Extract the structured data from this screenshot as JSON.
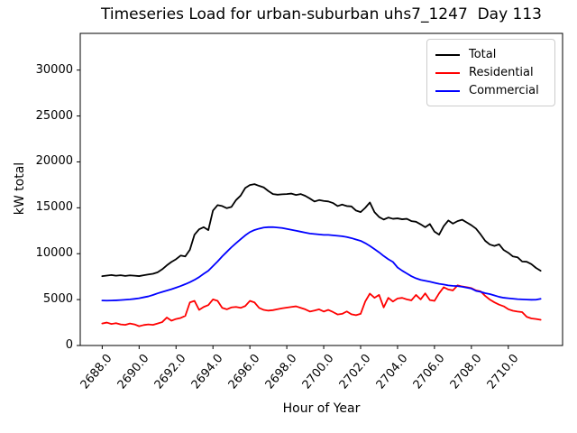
{
  "figure": {
    "title": "Timeseries Load for urban-suburban uhs7_1247  Day 113"
  },
  "chart_data": {
    "type": "line",
    "title": "Timeseries Load for urban-suburban uhs7_1247  Day 113",
    "xlabel": "Hour of Year",
    "ylabel": "kW total",
    "grid": false,
    "legend_position": "upper right",
    "xlim": [
      2686.81,
      2712.94
    ],
    "ylim": [
      0,
      34000
    ],
    "x_start": 2688.0,
    "x_step": 0.25,
    "x_end": 2711.75,
    "xticks": [
      2688,
      2690,
      2692,
      2694,
      2696,
      2698,
      2700,
      2702,
      2704,
      2706,
      2708,
      2710
    ],
    "xtick_labels": [
      "2688.0",
      "2690.0",
      "2692.0",
      "2694.0",
      "2696.0",
      "2698.0",
      "2700.0",
      "2702.0",
      "2704.0",
      "2706.0",
      "2708.0",
      "2710.0"
    ],
    "yticks": [
      0,
      5000,
      10000,
      15000,
      20000,
      25000,
      30000
    ],
    "ytick_labels": [
      "0",
      "5000",
      "10000",
      "15000",
      "20000",
      "25000",
      "30000"
    ],
    "series": [
      {
        "name": "Total",
        "color": "#000000",
        "values": [
          7550,
          7620,
          7680,
          7600,
          7650,
          7580,
          7640,
          7600,
          7560,
          7650,
          7740,
          7810,
          7970,
          8300,
          8730,
          9100,
          9400,
          9800,
          9700,
          10430,
          12070,
          12660,
          12890,
          12570,
          14700,
          15290,
          15190,
          14960,
          15100,
          15840,
          16330,
          17160,
          17480,
          17580,
          17390,
          17220,
          16830,
          16500,
          16430,
          16470,
          16500,
          16550,
          16400,
          16500,
          16300,
          16010,
          15690,
          15840,
          15750,
          15690,
          15520,
          15190,
          15350,
          15190,
          15150,
          14700,
          14530,
          15000,
          15580,
          14530,
          14000,
          13720,
          13940,
          13800,
          13850,
          13750,
          13800,
          13550,
          13480,
          13200,
          12890,
          13230,
          12400,
          12070,
          13000,
          13620,
          13280,
          13550,
          13700,
          13400,
          13100,
          12730,
          12100,
          11400,
          11000,
          10850,
          11020,
          10400,
          10100,
          9700,
          9610,
          9150,
          9120,
          8860,
          8450,
          8140
        ]
      },
      {
        "name": "Residential",
        "color": "#ff0000",
        "values": [
          2400,
          2500,
          2350,
          2430,
          2300,
          2250,
          2400,
          2300,
          2100,
          2230,
          2300,
          2250,
          2400,
          2550,
          3050,
          2700,
          2890,
          3000,
          3220,
          4690,
          4860,
          3880,
          4200,
          4400,
          5020,
          4860,
          4100,
          3940,
          4150,
          4200,
          4100,
          4300,
          4860,
          4690,
          4100,
          3880,
          3800,
          3850,
          3950,
          4050,
          4130,
          4200,
          4270,
          4100,
          3940,
          3700,
          3810,
          3940,
          3700,
          3880,
          3650,
          3380,
          3450,
          3710,
          3400,
          3300,
          3450,
          4800,
          5650,
          5200,
          5510,
          4150,
          5190,
          4790,
          5120,
          5190,
          5020,
          4920,
          5510,
          5020,
          5680,
          4950,
          4860,
          5680,
          6340,
          6100,
          6000,
          6550,
          6430,
          6350,
          6250,
          6000,
          5900,
          5400,
          5000,
          4700,
          4450,
          4270,
          3950,
          3780,
          3700,
          3640,
          3120,
          2950,
          2890,
          2800
        ]
      },
      {
        "name": "Commercial",
        "color": "#0000ff",
        "values": [
          4900,
          4890,
          4900,
          4920,
          4950,
          4990,
          5020,
          5080,
          5150,
          5250,
          5350,
          5500,
          5680,
          5830,
          5980,
          6130,
          6300,
          6480,
          6680,
          6900,
          7150,
          7450,
          7810,
          8140,
          8650,
          9150,
          9700,
          10200,
          10700,
          11150,
          11580,
          12000,
          12350,
          12580,
          12730,
          12850,
          12890,
          12900,
          12850,
          12800,
          12700,
          12600,
          12500,
          12400,
          12300,
          12200,
          12150,
          12100,
          12050,
          12050,
          12000,
          11950,
          11900,
          11820,
          11700,
          11550,
          11400,
          11150,
          10850,
          10500,
          10150,
          9750,
          9400,
          9100,
          8500,
          8150,
          7850,
          7550,
          7320,
          7150,
          7050,
          6950,
          6830,
          6720,
          6650,
          6550,
          6500,
          6470,
          6400,
          6300,
          6200,
          5950,
          5850,
          5700,
          5600,
          5450,
          5300,
          5200,
          5150,
          5100,
          5050,
          5020,
          5000,
          4980,
          4990,
          5080
        ]
      }
    ]
  }
}
